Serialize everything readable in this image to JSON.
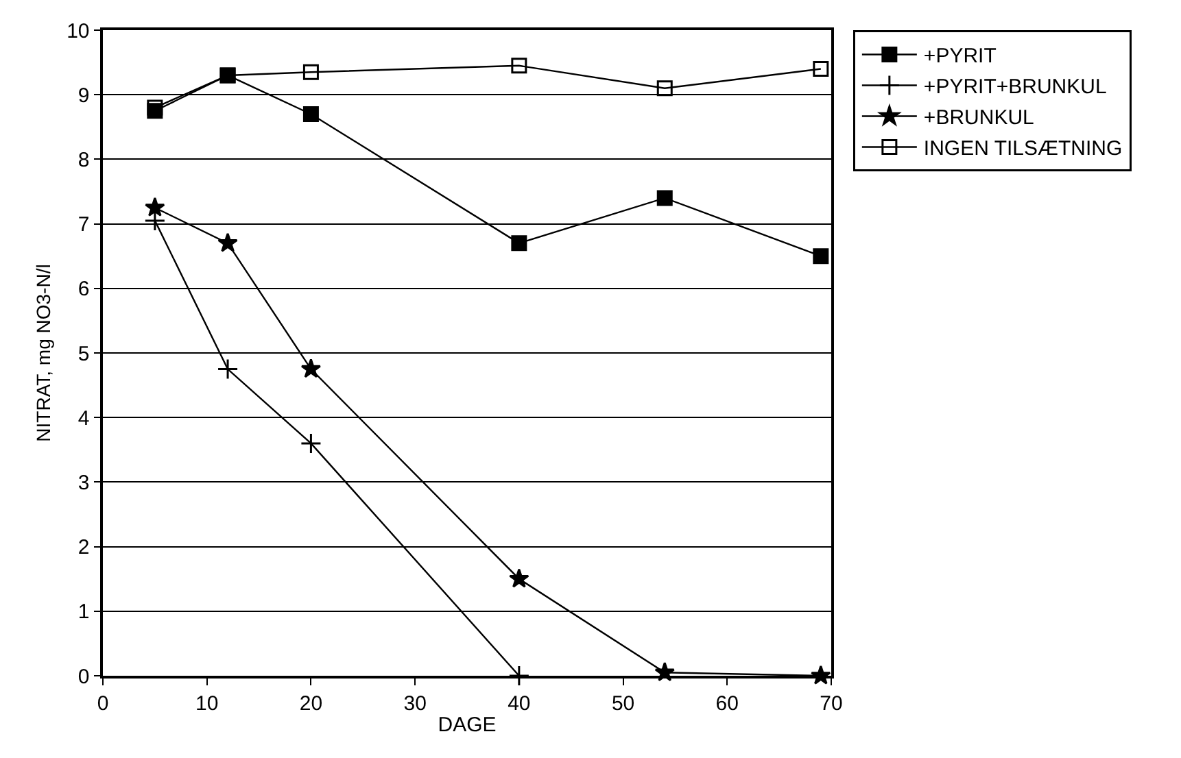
{
  "chart_data": {
    "type": "line",
    "xlabel": "DAGE",
    "ylabel": "NITRAT, mg NO3-N/l",
    "x": [
      5,
      12,
      20,
      40,
      54,
      69
    ],
    "series": [
      {
        "name": "+PYRIT",
        "color": "#000000",
        "marker": "square",
        "values": [
          8.75,
          9.3,
          8.7,
          6.7,
          7.4,
          6.5
        ]
      },
      {
        "name": "+PYRIT+BRUNKUL",
        "color": "#000000",
        "marker": "cross",
        "values": [
          7.05,
          4.75,
          3.6,
          0,
          null,
          null
        ]
      },
      {
        "name": "+BRUNKUL",
        "color": "#000000",
        "marker": "star",
        "values": [
          7.25,
          6.7,
          4.75,
          1.5,
          0.05,
          0
        ]
      },
      {
        "name": "INGEN TILSÆTNING",
        "color": "#000000",
        "marker": "square-open",
        "values": [
          8.8,
          9.3,
          9.35,
          9.45,
          9.1,
          9.4
        ]
      }
    ],
    "xlim": [
      0,
      70
    ],
    "xticks": [
      0,
      10,
      20,
      30,
      40,
      50,
      60,
      70
    ],
    "ylim": [
      0,
      10
    ],
    "yticks": [
      0,
      1,
      2,
      3,
      4,
      5,
      6,
      7,
      8,
      9,
      10
    ],
    "grid": "y",
    "legend": "top right",
    "line_style": "solid"
  }
}
